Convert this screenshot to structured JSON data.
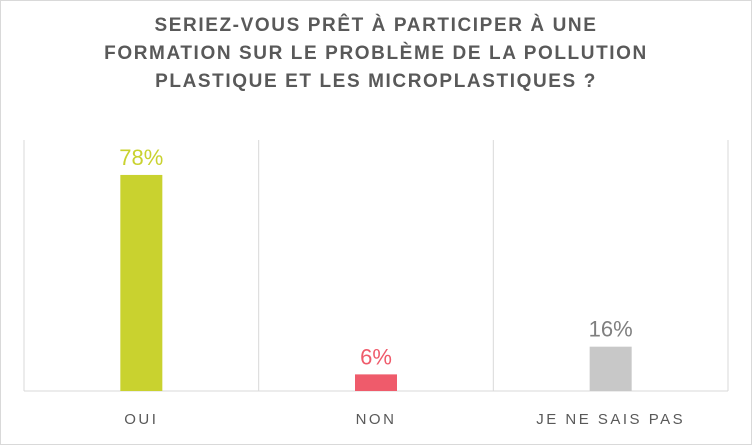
{
  "chart_data": {
    "type": "bar",
    "title_lines": [
      "SERIEZ-VOUS PRÊT À PARTICIPER À UNE",
      "FORMATION SUR LE PROBLÈME DE LA POLLUTION",
      "PLASTIQUE ET LES MICROPLASTIQUES ?"
    ],
    "categories": [
      "OUI",
      "NON",
      "JE NE SAIS PAS"
    ],
    "values": [
      78,
      6,
      16
    ],
    "value_labels": [
      "78%",
      "6%",
      "16%"
    ],
    "colors": [
      "#c9d22f",
      "#ef5b6b",
      "#c8c8c8"
    ],
    "label_colors": [
      "#c9d22f",
      "#ef5b6b",
      "#7f7f7f"
    ],
    "ylim": [
      0,
      100
    ],
    "grid": "vertical separators between categories",
    "legend": "none"
  }
}
